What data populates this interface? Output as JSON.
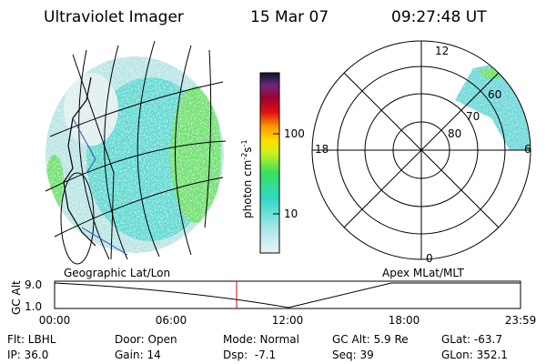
{
  "header": {
    "title": "Ultraviolet Imager",
    "date": "15 Mar 07",
    "time": "09:27:48 UT"
  },
  "colorbar": {
    "label": "photon cm",
    "exp1": "-2",
    "unit2": "s",
    "exp2": "-1",
    "ticks": [
      "100",
      "10"
    ]
  },
  "polar": {
    "hours": [
      "12",
      "18",
      "6",
      "0"
    ],
    "latitudes": [
      "80",
      "70",
      "60"
    ]
  },
  "panels": {
    "left": "Geographic Lat/Lon",
    "right": "Apex MLat/MLT"
  },
  "altitude": {
    "ylabel": "GC Alt",
    "yticks": [
      "9.0",
      "1.0"
    ],
    "xticks": [
      "00:00",
      "06:00",
      "12:00",
      "18:00",
      "23:59"
    ]
  },
  "footer": {
    "rows": [
      [
        "Flt: LBHL",
        "Door: Open",
        "Mode: Normal",
        "GC Alt: 5.9 Re",
        "GLat: -63.7"
      ],
      [
        "IP: 36.0",
        "Gain: 14",
        "Dsp:  -7.1",
        "Seq: 39",
        "GLon: 352.1"
      ]
    ]
  }
}
